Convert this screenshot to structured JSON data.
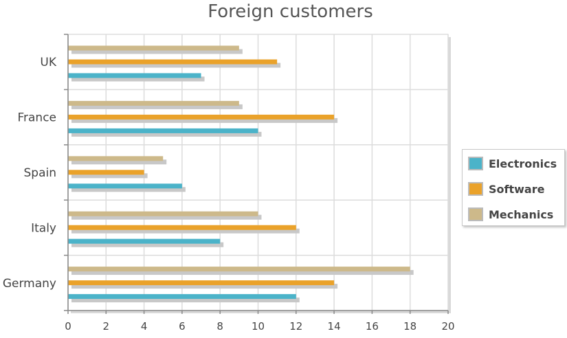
{
  "chart_data": {
    "type": "bar",
    "orientation": "horizontal",
    "title": "Foreign customers",
    "categories": [
      "UK",
      "France",
      "Spain",
      "Italy",
      "Germany"
    ],
    "series": [
      {
        "name": "Electronics",
        "color": "#4bb3c9",
        "values": [
          7,
          10,
          6,
          8,
          12
        ]
      },
      {
        "name": "Software",
        "color": "#eaa22a",
        "values": [
          11,
          14,
          4,
          12,
          14
        ]
      },
      {
        "name": "Mechanics",
        "color": "#cdb98a",
        "values": [
          9,
          9,
          5,
          10,
          18
        ]
      }
    ],
    "xlim": [
      0,
      20
    ],
    "x_ticks": [
      0,
      2,
      4,
      6,
      8,
      10,
      12,
      14,
      16,
      18,
      20
    ],
    "grid": true,
    "legend_position": "right"
  }
}
